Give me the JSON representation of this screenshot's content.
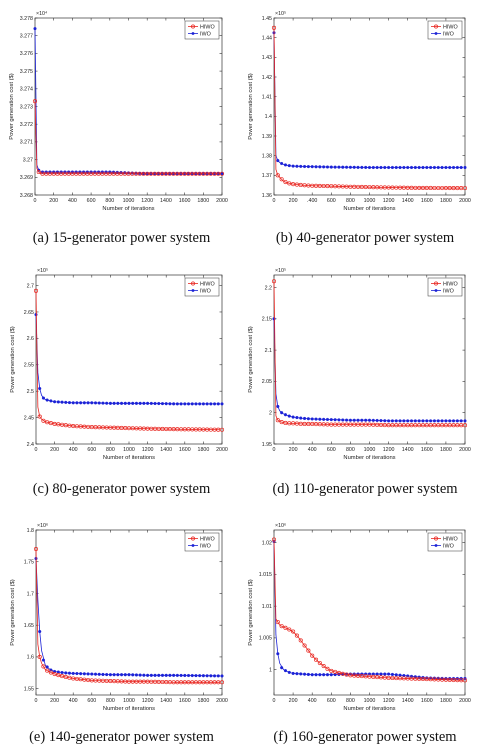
{
  "colors": {
    "HIWO": "#e8251f",
    "IWO": "#1b22d6",
    "axis": "#333333",
    "grid": "#d9d9d9"
  },
  "chart_data": [
    {
      "type": "line",
      "caption": "(a) 15-generator power system",
      "xlabel": "Number of iterations",
      "ylabel": "Power generation cost ($)",
      "exponent": "×10⁴",
      "xlim": [
        0,
        2000
      ],
      "ylim": [
        3.268,
        3.278
      ],
      "xticks": [
        0,
        200,
        400,
        600,
        800,
        1000,
        1200,
        1400,
        1600,
        1800,
        2000
      ],
      "xtick_labels": [
        "0",
        "200",
        "400",
        "600",
        "800",
        "1000",
        "1200",
        "1400",
        "1600",
        "1800",
        "2000"
      ],
      "yticks": [
        3.268,
        3.269,
        3.27,
        3.271,
        3.272,
        3.273,
        3.274,
        3.275,
        3.276,
        3.277,
        3.278
      ],
      "ytick_labels": [
        "3.268",
        "3.269",
        "3.27",
        "3.271",
        "3.272",
        "3.273",
        "3.274",
        "3.275",
        "3.276",
        "3.277",
        "3.278"
      ],
      "legend": [
        "HIWO",
        "IWO"
      ],
      "legend_position": "top-right",
      "series": [
        {
          "name": "HIWO",
          "x": [
            0,
            20,
            40,
            60,
            80,
            100,
            150,
            200,
            300,
            500,
            800,
            1200,
            1600,
            2000
          ],
          "y": [
            3.2733,
            3.2695,
            3.2693,
            3.2692,
            3.2692,
            3.2692,
            3.2692,
            3.2692,
            3.2692,
            3.2692,
            3.2692,
            3.2692,
            3.2692,
            3.2692
          ]
        },
        {
          "name": "IWO",
          "x": [
            0,
            20,
            40,
            60,
            80,
            100,
            150,
            200,
            300,
            500,
            800,
            1200,
            1600,
            2000
          ],
          "y": [
            3.2774,
            3.2697,
            3.2694,
            3.2693,
            3.2693,
            3.2693,
            3.2693,
            3.2693,
            3.2693,
            3.2693,
            3.2693,
            3.2692,
            3.2692,
            3.2692
          ]
        }
      ]
    },
    {
      "type": "line",
      "caption": "(b) 40-generator power system",
      "xlabel": "Number of iterations",
      "ylabel": "Power generation cost ($)",
      "exponent": "×10⁵",
      "xlim": [
        0,
        2000
      ],
      "ylim": [
        1.36,
        1.45
      ],
      "xticks": [
        0,
        200,
        400,
        600,
        800,
        1000,
        1200,
        1400,
        1600,
        1800,
        2000
      ],
      "xtick_labels": [
        "0",
        "200",
        ".400",
        "600",
        "800",
        "1000",
        "1200",
        "1400",
        "1600",
        "1800",
        "2000"
      ],
      "yticks": [
        1.36,
        1.37,
        1.38,
        1.39,
        1.4,
        1.41,
        1.42,
        1.43,
        1.44,
        1.45
      ],
      "ytick_labels": [
        "1.36",
        "1.37",
        "1.38",
        "1.39",
        "1.4",
        "1.41",
        "1.42",
        "1.43",
        "1.44",
        "1.45"
      ],
      "legend": [
        "HIWO",
        "IWO"
      ],
      "legend_position": "top-right",
      "series": [
        {
          "name": "HIWO",
          "x": [
            0,
            20,
            40,
            60,
            80,
            100,
            150,
            200,
            300,
            400,
            600,
            800,
            1000,
            1200,
            1500,
            2000
          ],
          "y": [
            1.445,
            1.373,
            1.37,
            1.369,
            1.368,
            1.367,
            1.366,
            1.3655,
            1.365,
            1.3647,
            1.3645,
            1.3642,
            1.364,
            1.3638,
            1.3636,
            1.3635
          ]
        },
        {
          "name": "IWO",
          "x": [
            0,
            20,
            40,
            60,
            80,
            100,
            150,
            200,
            300,
            400,
            600,
            800,
            1000,
            1200,
            1500,
            2000
          ],
          "y": [
            1.4425,
            1.38,
            1.3775,
            1.3765,
            1.376,
            1.3755,
            1.375,
            1.3747,
            1.3745,
            1.3744,
            1.3742,
            1.3741,
            1.374,
            1.374,
            1.374,
            1.374
          ]
        }
      ]
    },
    {
      "type": "line",
      "caption": "(c) 80-generator power system",
      "xlabel": "Number of iterations",
      "ylabel": "Power generation cost ($)",
      "exponent": "×10⁵",
      "xlim": [
        0,
        2000
      ],
      "ylim": [
        2.4,
        2.72
      ],
      "xticks": [
        0,
        200,
        400,
        600,
        800,
        1000,
        1200,
        1400,
        1600,
        1800,
        2000
      ],
      "xtick_labels": [
        "0",
        "200",
        "400",
        "600",
        "800",
        "1000",
        "1200",
        "1400",
        "1600",
        "1800",
        "2000"
      ],
      "yticks": [
        2.4,
        2.45,
        2.5,
        2.55,
        2.6,
        2.65,
        2.7
      ],
      "ytick_labels": [
        "2.4",
        "2.45",
        "2.5",
        "2.55",
        "2.6",
        "2.65",
        "2.7"
      ],
      "legend": [
        "HIWO",
        "IWO"
      ],
      "legend_position": "top-right",
      "series": [
        {
          "name": "HIWO",
          "x": [
            0,
            20,
            40,
            60,
            80,
            100,
            150,
            200,
            300,
            400,
            600,
            800,
            1000,
            1200,
            1500,
            2000
          ],
          "y": [
            2.69,
            2.47,
            2.452,
            2.447,
            2.444,
            2.442,
            2.44,
            2.438,
            2.436,
            2.434,
            2.432,
            2.431,
            2.43,
            2.429,
            2.428,
            2.427
          ]
        },
        {
          "name": "IWO",
          "x": [
            0,
            20,
            40,
            60,
            80,
            100,
            150,
            200,
            300,
            400,
            600,
            800,
            1000,
            1200,
            1500,
            2000
          ],
          "y": [
            2.645,
            2.535,
            2.505,
            2.492,
            2.487,
            2.484,
            2.482,
            2.48,
            2.479,
            2.478,
            2.478,
            2.477,
            2.477,
            2.477,
            2.476,
            2.476
          ]
        }
      ]
    },
    {
      "type": "line",
      "caption": "(d) 110-generator power system",
      "xlabel": "Number of iterations",
      "ylabel": "Power generation cost ($)",
      "exponent": "×10⁵",
      "xlim": [
        0,
        2000
      ],
      "ylim": [
        1.95,
        2.22
      ],
      "xticks": [
        0,
        200,
        400,
        600,
        800,
        1000,
        1200,
        1400,
        1600,
        1800,
        2000
      ],
      "xtick_labels": [
        "0",
        "200",
        "400",
        "600",
        "800",
        "1000",
        "1200",
        "1400",
        "1600",
        "1800",
        "2000"
      ],
      "yticks": [
        1.95,
        2.0,
        2.05,
        2.1,
        2.15,
        2.2
      ],
      "ytick_labels": [
        "1.95",
        "2",
        "2.05",
        "2.1",
        "2.15",
        "2.2"
      ],
      "legend": [
        "HIWO",
        "IWO"
      ],
      "legend_position": "top-right",
      "series": [
        {
          "name": "HIWO",
          "x": [
            0,
            20,
            40,
            60,
            80,
            100,
            150,
            200,
            300,
            400,
            600,
            800,
            1000,
            1200,
            1500,
            2000
          ],
          "y": [
            2.21,
            1.995,
            1.988,
            1.986,
            1.985,
            1.984,
            1.983,
            1.983,
            1.982,
            1.982,
            1.981,
            1.981,
            1.981,
            1.98,
            1.98,
            1.98
          ]
        },
        {
          "name": "IWO",
          "x": [
            0,
            20,
            40,
            60,
            80,
            100,
            150,
            200,
            300,
            400,
            600,
            800,
            1000,
            1200,
            1500,
            2000
          ],
          "y": [
            2.15,
            2.03,
            2.01,
            2.003,
            2.0,
            1.998,
            1.995,
            1.993,
            1.991,
            1.99,
            1.989,
            1.988,
            1.988,
            1.987,
            1.987,
            1.987
          ]
        }
      ]
    },
    {
      "type": "line",
      "caption": "(e) 140-generator power system",
      "xlabel": "Number of iterations",
      "ylabel": "Power generation cost ($)",
      "exponent": "×10⁶",
      "xlim": [
        0,
        2000
      ],
      "ylim": [
        1.54,
        1.8
      ],
      "xticks": [
        0,
        200,
        400,
        600,
        800,
        1000,
        1200,
        1400,
        1600,
        1800,
        2000
      ],
      "xtick_labels": [
        "0",
        "200",
        "400",
        "600",
        "800",
        "1000",
        "1200",
        "1400",
        "1600",
        "1800",
        "2000"
      ],
      "yticks": [
        1.55,
        1.6,
        1.65,
        1.7,
        1.75,
        1.8
      ],
      "ytick_labels": [
        "1.55",
        "1.6",
        "1.65",
        "1.7",
        "1.75",
        "1.8"
      ],
      "legend": [
        "HIWO",
        "IWO"
      ],
      "legend_position": "top-right",
      "series": [
        {
          "name": "HIWO",
          "x": [
            0,
            20,
            40,
            60,
            80,
            100,
            150,
            200,
            300,
            400,
            600,
            800,
            1000,
            1200,
            1500,
            2000
          ],
          "y": [
            1.77,
            1.62,
            1.6,
            1.59,
            1.585,
            1.58,
            1.576,
            1.573,
            1.569,
            1.566,
            1.563,
            1.562,
            1.561,
            1.561,
            1.56,
            1.56
          ]
        },
        {
          "name": "IWO",
          "x": [
            0,
            20,
            40,
            60,
            80,
            100,
            150,
            200,
            300,
            400,
            600,
            800,
            1000,
            1200,
            1500,
            2000
          ],
          "y": [
            1.755,
            1.69,
            1.64,
            1.61,
            1.595,
            1.587,
            1.58,
            1.577,
            1.575,
            1.574,
            1.573,
            1.572,
            1.572,
            1.571,
            1.571,
            1.57
          ]
        }
      ]
    },
    {
      "type": "line",
      "caption": "(f) 160-generator power system",
      "xlabel": "Number of iterations",
      "ylabel": "Power generation cost ($)",
      "exponent": "×10⁶",
      "xlim": [
        0,
        2000
      ],
      "ylim": [
        0.996,
        1.022
      ],
      "xticks": [
        0,
        200,
        400,
        600,
        800,
        1000,
        1200,
        1400,
        1600,
        1800,
        2000
      ],
      "xtick_labels": [
        "0",
        "200",
        "400",
        "600",
        "800",
        "1000",
        "1200",
        "1400",
        "1600",
        "1800",
        "2000"
      ],
      "yticks": [
        1.0,
        1.005,
        1.01,
        1.015,
        1.02
      ],
      "ytick_labels": [
        "1",
        "1.005",
        "1.01",
        "1.015",
        "1.02"
      ],
      "legend": [
        "HIWO",
        "IWO"
      ],
      "legend_position": "top-right",
      "series": [
        {
          "name": "HIWO",
          "x": [
            0,
            20,
            40,
            60,
            100,
            150,
            200,
            250,
            300,
            350,
            400,
            450,
            500,
            550,
            600,
            700,
            800,
            1000,
            1200,
            1400,
            1600,
            2000
          ],
          "y": [
            1.0205,
            1.008,
            1.0075,
            1.007,
            1.0067,
            1.0064,
            1.006,
            1.0052,
            1.0042,
            1.0032,
            1.0022,
            1.0014,
            1.0008,
            1.0002,
            0.9998,
            0.9994,
            0.9991,
            0.9989,
            0.9987,
            0.9986,
            0.9985,
            0.9983
          ]
        },
        {
          "name": "IWO",
          "x": [
            0,
            20,
            40,
            60,
            80,
            100,
            150,
            200,
            300,
            400,
            600,
            800,
            1000,
            1200,
            1400,
            1600,
            1800,
            2000
          ],
          "y": [
            1.0202,
            1.0055,
            1.0025,
            1.001,
            1.0003,
            1.0,
            0.9996,
            0.9994,
            0.9993,
            0.9992,
            0.9992,
            0.9993,
            0.9993,
            0.9993,
            0.999,
            0.9987,
            0.9986,
            0.9986
          ]
        }
      ]
    }
  ]
}
